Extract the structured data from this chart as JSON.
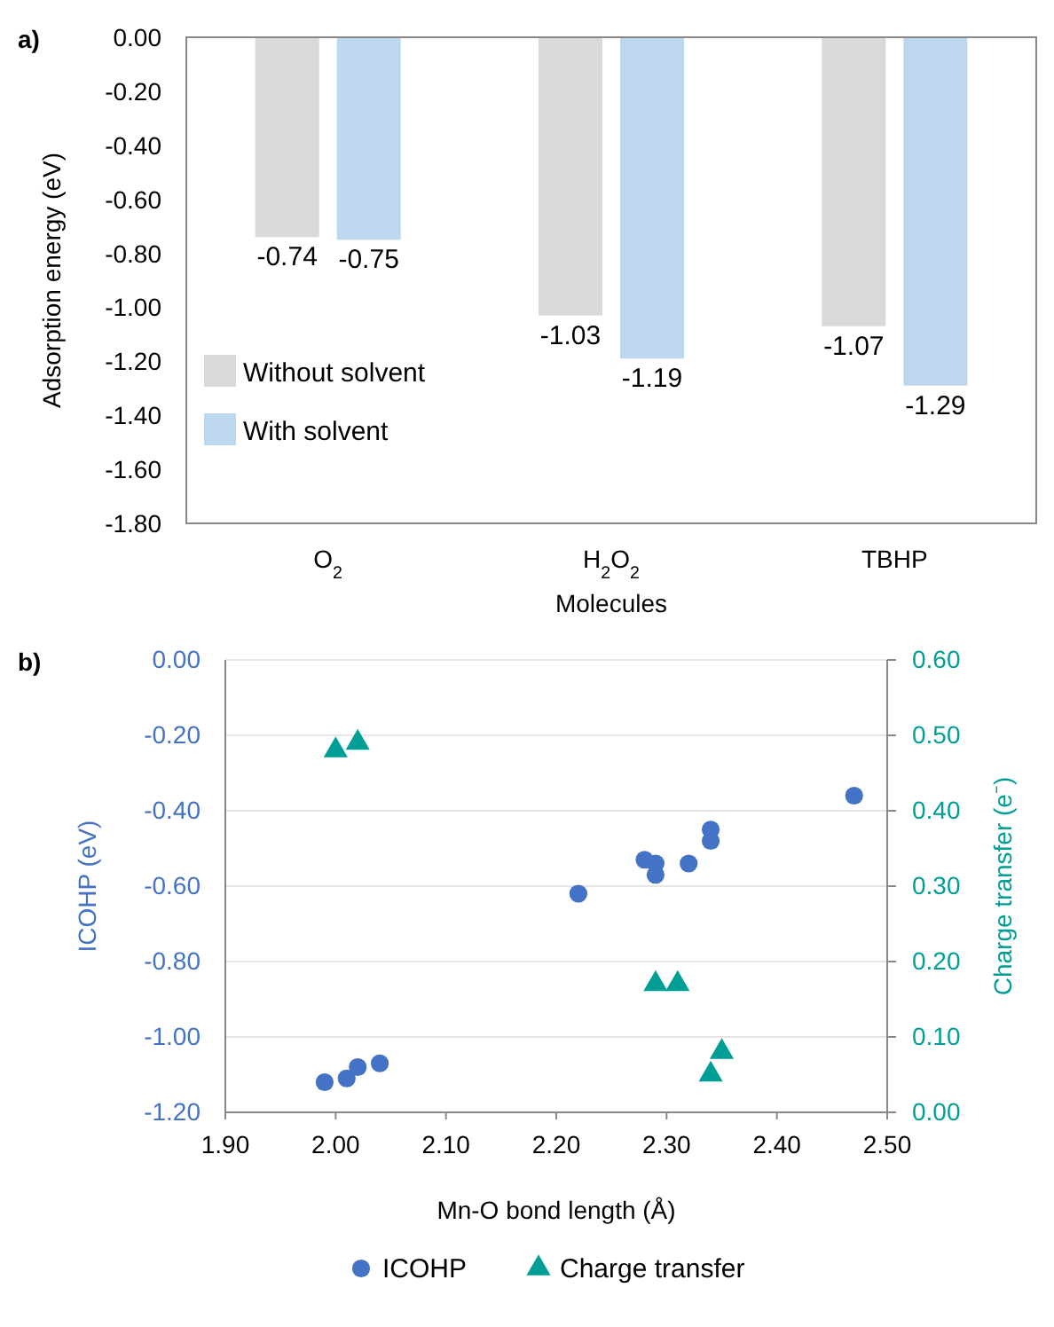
{
  "chart_data": [
    {
      "type": "bar",
      "title": "a)",
      "xlabel": "Molecules",
      "ylabel": "Adsorption energy (eV)",
      "categories": [
        "O$_{2}$",
        "H$_{2}$O$_{2}$",
        "TBHP"
      ],
      "series": [
        {
          "name": "Without solvent",
          "color": "#d9d9d9",
          "values": [
            -0.74,
            -1.03,
            -1.07
          ]
        },
        {
          "name": "With solvent",
          "color": "#bdd7ee",
          "values": [
            -0.75,
            -1.19,
            -1.29
          ]
        }
      ],
      "ylim": [
        -1.8,
        0
      ],
      "yticks": [
        {
          "value": -1.8,
          "label": "-1.80"
        },
        {
          "value": -1.6,
          "label": "-1.60"
        },
        {
          "value": -1.4,
          "label": "-1.40"
        },
        {
          "value": -1.2,
          "label": "-1.20"
        },
        {
          "value": -1.0,
          "label": "-1.00"
        },
        {
          "value": -0.8,
          "label": "-0.80"
        },
        {
          "value": -0.6,
          "label": "-0.60"
        },
        {
          "value": -0.4,
          "label": "-0.40"
        },
        {
          "value": -0.2,
          "label": "-0.20"
        },
        {
          "value": 0,
          "label": "0.00"
        }
      ],
      "data_labels": true,
      "legend": "bottom left"
    },
    {
      "type": "scatter",
      "title": "b)",
      "xlabel": "Mn-O bond length (Å)",
      "ylabel": "ICOHP (eV)",
      "y2label": "Charge transfer (e⁻)",
      "series": [
        {
          "name": "ICOHP",
          "color": "#4472c4",
          "marker": "circle",
          "x": [
            1.99,
            2.01,
            2.02,
            2.04,
            2.22,
            2.28,
            2.29,
            2.29,
            2.32,
            2.34,
            2.34,
            2.47
          ],
          "values": [
            -1.12,
            -1.11,
            -1.08,
            -1.07,
            -0.62,
            -0.53,
            -0.54,
            -0.57,
            -0.54,
            -0.45,
            -0.48,
            -0.36
          ]
        },
        {
          "name": "Charge transfer",
          "color": "#009e94",
          "marker": "triangle",
          "axis": "y2",
          "x": [
            2.0,
            2.02,
            2.29,
            2.31,
            2.35,
            2.34
          ],
          "values": [
            0.48,
            0.49,
            0.17,
            0.17,
            0.08,
            0.05
          ]
        }
      ],
      "xlim": [
        1.9,
        2.5
      ],
      "xticks": [
        {
          "value": 1.9,
          "label": "1.90"
        },
        {
          "value": 2.0,
          "label": "2.00"
        },
        {
          "value": 2.1,
          "label": "2.10"
        },
        {
          "value": 2.2,
          "label": "2.20"
        },
        {
          "value": 2.3,
          "label": "2.30"
        },
        {
          "value": 2.4,
          "label": "2.40"
        },
        {
          "value": 2.5,
          "label": "2.50"
        }
      ],
      "ylim": [
        -1.2,
        0
      ],
      "yticks": [
        {
          "value": -1.2,
          "label": "-1.20"
        },
        {
          "value": -1.0,
          "label": "-1.00"
        },
        {
          "value": -0.8,
          "label": "-0.80"
        },
        {
          "value": -0.6,
          "label": "-0.60"
        },
        {
          "value": -0.4,
          "label": "-0.40"
        },
        {
          "value": -0.2,
          "label": "-0.20"
        },
        {
          "value": 0,
          "label": "0.00"
        }
      ],
      "y2lim": [
        0,
        0.6
      ],
      "y2ticks": [
        {
          "value": 0,
          "label": "0.00"
        },
        {
          "value": 0.1,
          "label": "0.10"
        },
        {
          "value": 0.2,
          "label": "0.20"
        },
        {
          "value": 0.3,
          "label": "0.30"
        },
        {
          "value": 0.4,
          "label": "0.40"
        },
        {
          "value": 0.5,
          "label": "0.50"
        },
        {
          "value": 0.6,
          "label": "0.60"
        }
      ],
      "grid": "y",
      "legend": "bottom"
    }
  ]
}
